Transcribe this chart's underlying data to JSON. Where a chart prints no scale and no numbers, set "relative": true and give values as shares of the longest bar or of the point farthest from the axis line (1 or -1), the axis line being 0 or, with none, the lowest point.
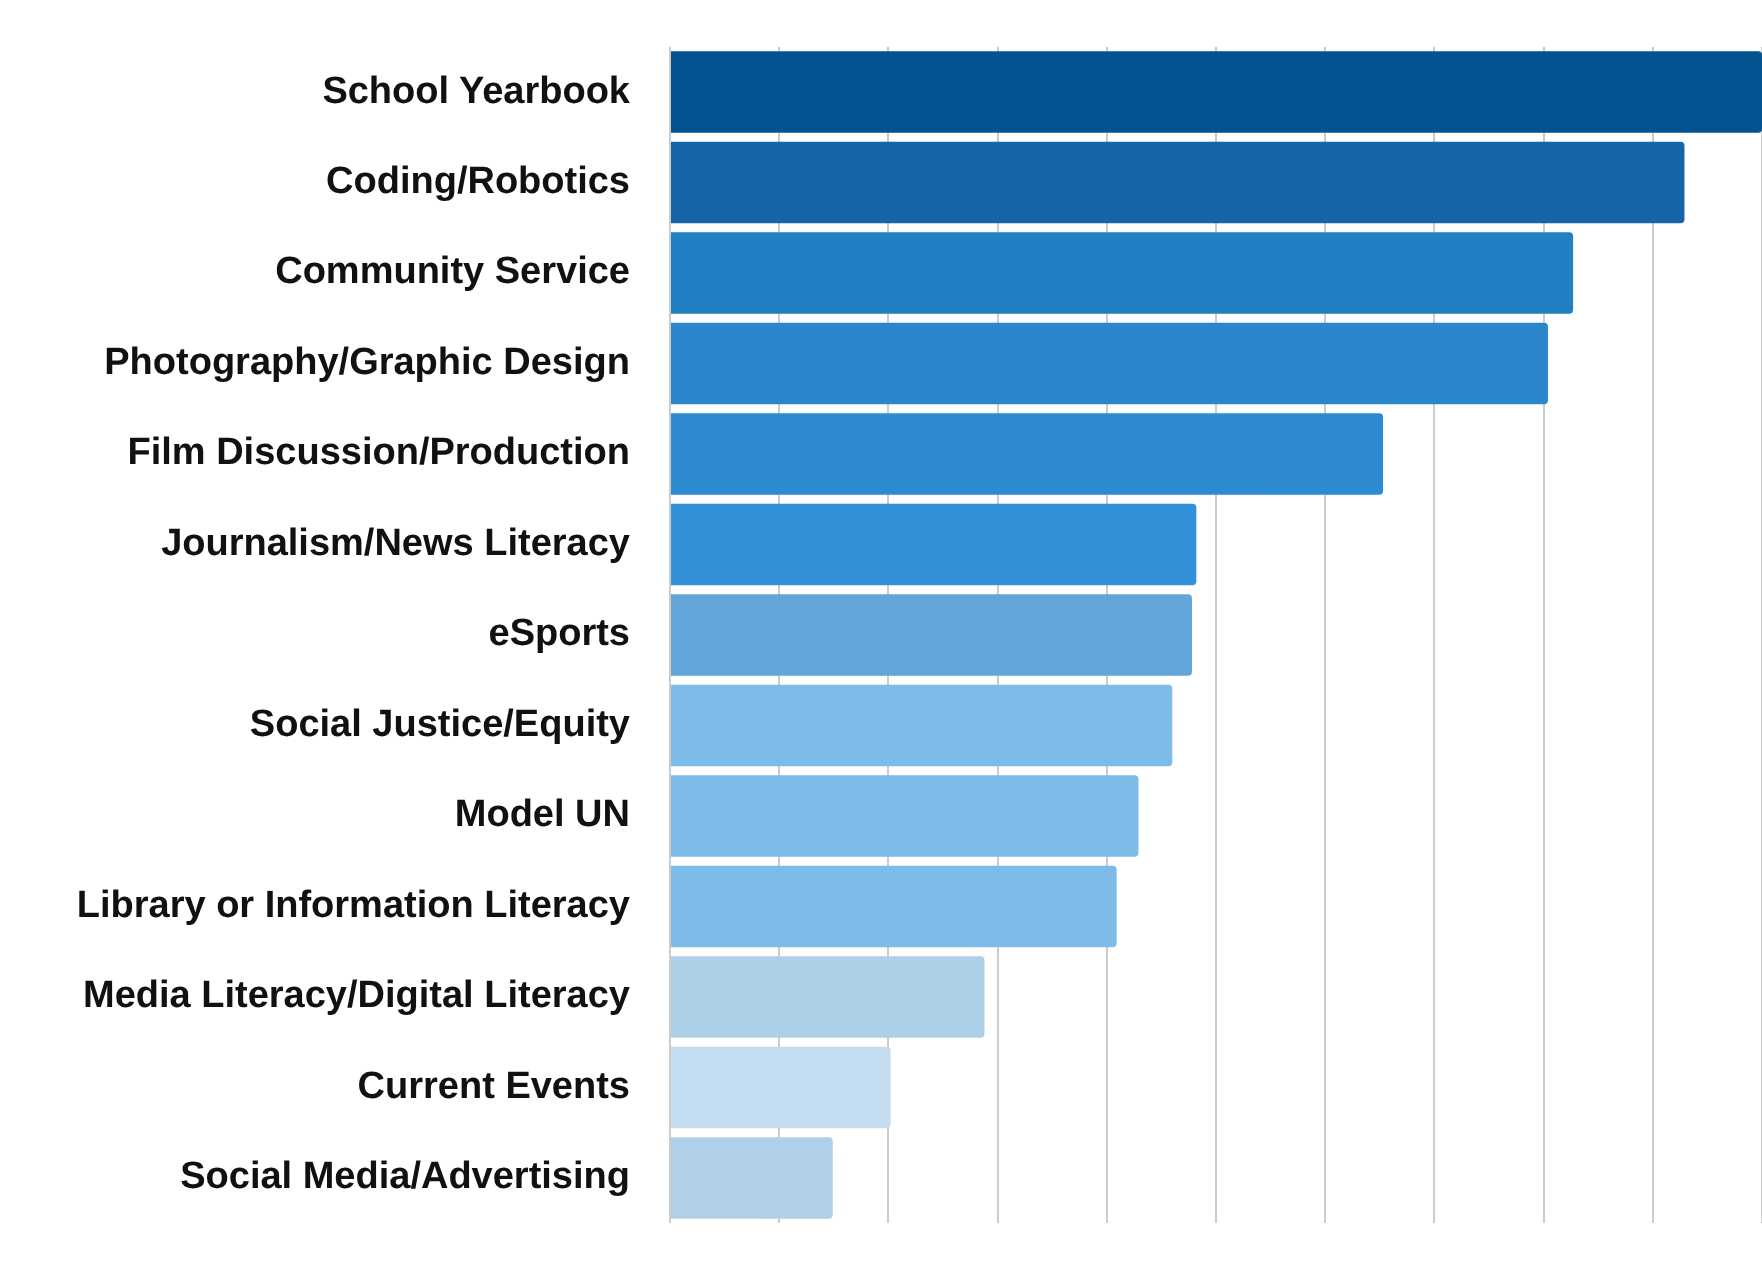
{
  "chart_data": {
    "type": "bar",
    "orientation": "horizontal",
    "relative": true,
    "grid": "x",
    "categories": [
      "School Yearbook",
      "Coding/Robotics",
      "Community Service",
      "Photography/Graphic Design",
      "Film Discussion/Production",
      "Journalism/News Literacy",
      "eSports",
      "Social Justice/Equity",
      "Model UN",
      "Library or Information Literacy",
      "Media Literacy/Digital Literacy",
      "Current Events",
      "Social Media/Advertising"
    ],
    "values": [
      1,
      0.929,
      0.827,
      0.804,
      0.653,
      0.482,
      0.478,
      0.46,
      0.429,
      0.409,
      0.288,
      0.202,
      0.149
    ],
    "colors": [
      "#02538f",
      "#1565a8",
      "#2180c4",
      "#2a87cc",
      "#2d8ad0",
      "#3391da",
      "#62a5da",
      "#7dbbe8",
      "#7dbbe8",
      "#7dbbe8",
      "#aecfe8",
      "#c3dcef",
      "#b0d0ea"
    ]
  }
}
